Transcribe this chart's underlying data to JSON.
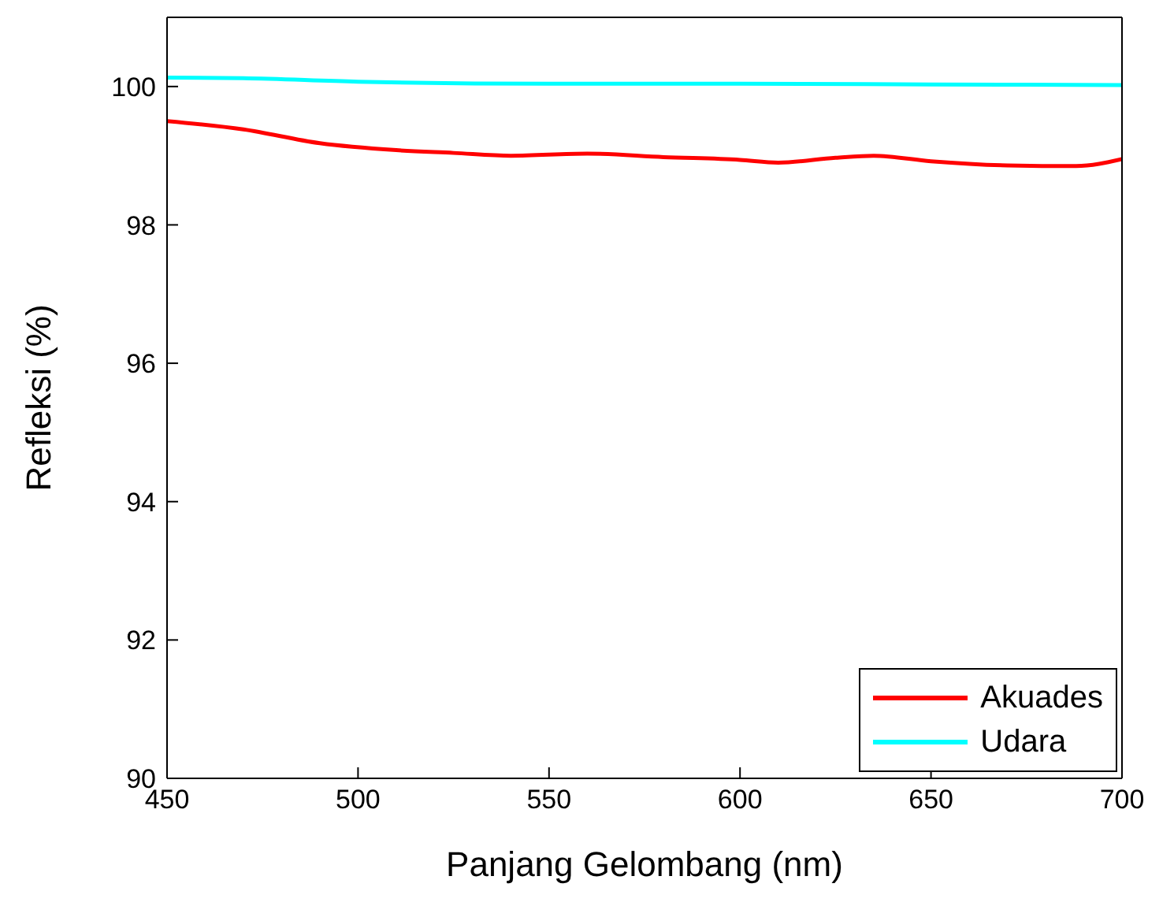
{
  "chart_data": {
    "type": "line",
    "xlabel": "Panjang Gelombang (nm)",
    "ylabel": "Refleksi (%)",
    "xlim": [
      450,
      700
    ],
    "xticks": [
      450,
      500,
      550,
      600,
      650,
      700
    ],
    "ylim": [
      90,
      101
    ],
    "yticks": [
      90,
      92,
      94,
      96,
      98,
      100
    ],
    "legend": "bottom right",
    "grid": false,
    "marker": "none",
    "line_style": "solid",
    "series": [
      {
        "name": "Akuades",
        "color": "#ff0000",
        "x": [
          450,
          470,
          490,
          510,
          525,
          540,
          560,
          580,
          600,
          610,
          625,
          635,
          650,
          670,
          688,
          700
        ],
        "values": [
          99.5,
          99.38,
          99.18,
          99.08,
          99.04,
          99.0,
          99.03,
          98.98,
          98.94,
          98.9,
          98.97,
          99.0,
          98.92,
          98.86,
          98.85,
          98.95
        ]
      },
      {
        "name": "Udara",
        "color": "#00ffff",
        "x": [
          450,
          470,
          500,
          550,
          600,
          650,
          700
        ],
        "values": [
          100.13,
          100.12,
          100.07,
          100.04,
          100.04,
          100.03,
          100.02
        ]
      }
    ]
  }
}
